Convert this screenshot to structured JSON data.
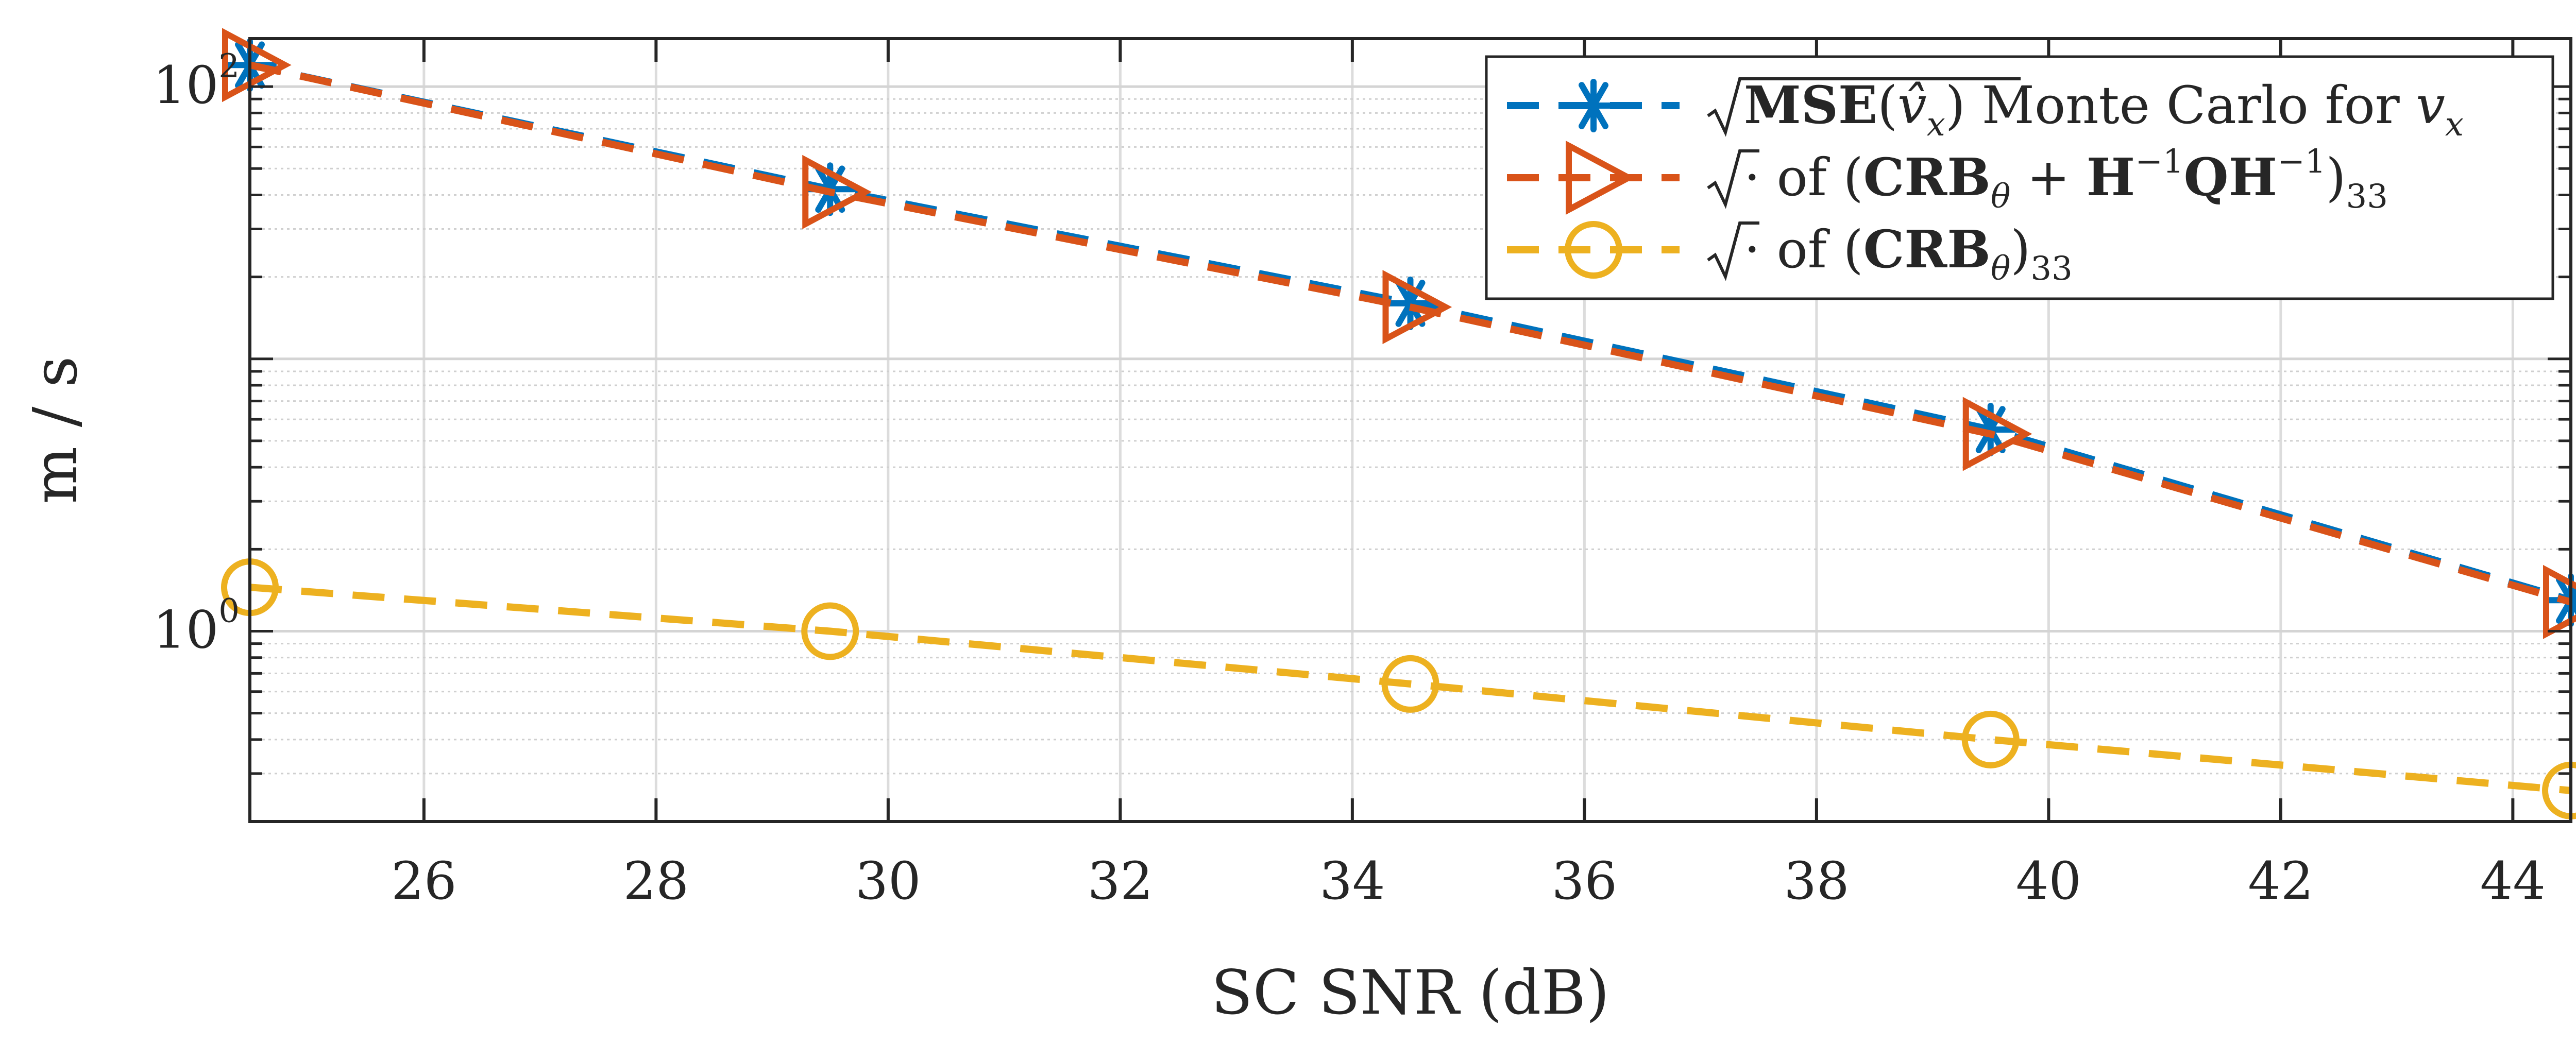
{
  "chart_data": {
    "type": "line",
    "xlabel": "SC SNR (dB)",
    "ylabel": "m / s",
    "xlim": [
      24.5,
      44.5
    ],
    "ylim": [
      0.2,
      150
    ],
    "yscale": "log",
    "grid": true,
    "legend_position": "top-right",
    "x_ticks": [
      26,
      28,
      30,
      32,
      34,
      36,
      38,
      40,
      42,
      44
    ],
    "x_tick_labels": [
      "26",
      "28",
      "30",
      "32",
      "34",
      "36",
      "38",
      "40",
      "42",
      "44"
    ],
    "y_tick_labels": [
      {
        "value": 1,
        "base": "10",
        "exp": "0"
      },
      {
        "value": 100,
        "base": "10",
        "exp": "2"
      }
    ],
    "series": [
      {
        "key": "mse",
        "name": "√MSE(v̂x) Monte Carlo for vx",
        "legend_parts": {
          "bold": "MSE",
          "pre": "(",
          "var": "v̂",
          "sub": "x",
          "post": ") Monte Carlo for ",
          "var2": "v",
          "sub2": "x"
        },
        "color": "#0072BD",
        "marker": "asterisk",
        "x": [
          24.5,
          29.5,
          34.5,
          39.5,
          44.5
        ],
        "y": [
          120,
          42,
          16,
          5.5,
          1.3
        ]
      },
      {
        "key": "crbq",
        "name": "√· of (CRBθ + H⁻¹QH⁻¹)33",
        "legend_parts": {
          "pre": "· of (",
          "b1": "CRB",
          "sub1": "θ",
          "mid": " + ",
          "b2": "H",
          "sup1": "−1",
          "b3": "QH",
          "sup2": "−1",
          "post": ")",
          "sub2": "33"
        },
        "color": "#D95319",
        "marker": "triangle-right",
        "x": [
          24.5,
          29.5,
          34.5,
          39.5,
          44.5
        ],
        "y": [
          120,
          41,
          15.5,
          5.3,
          1.28
        ]
      },
      {
        "key": "crb",
        "name": "√· of (CRBθ)33",
        "legend_parts": {
          "pre": "· of (",
          "b1": "CRB",
          "sub1": "θ",
          "post": ")",
          "sub2": "33"
        },
        "color": "#EDB120",
        "marker": "circle",
        "x": [
          24.5,
          29.5,
          34.5,
          39.5,
          44.5
        ],
        "y": [
          1.45,
          1.0,
          0.64,
          0.4,
          0.26
        ]
      }
    ]
  }
}
